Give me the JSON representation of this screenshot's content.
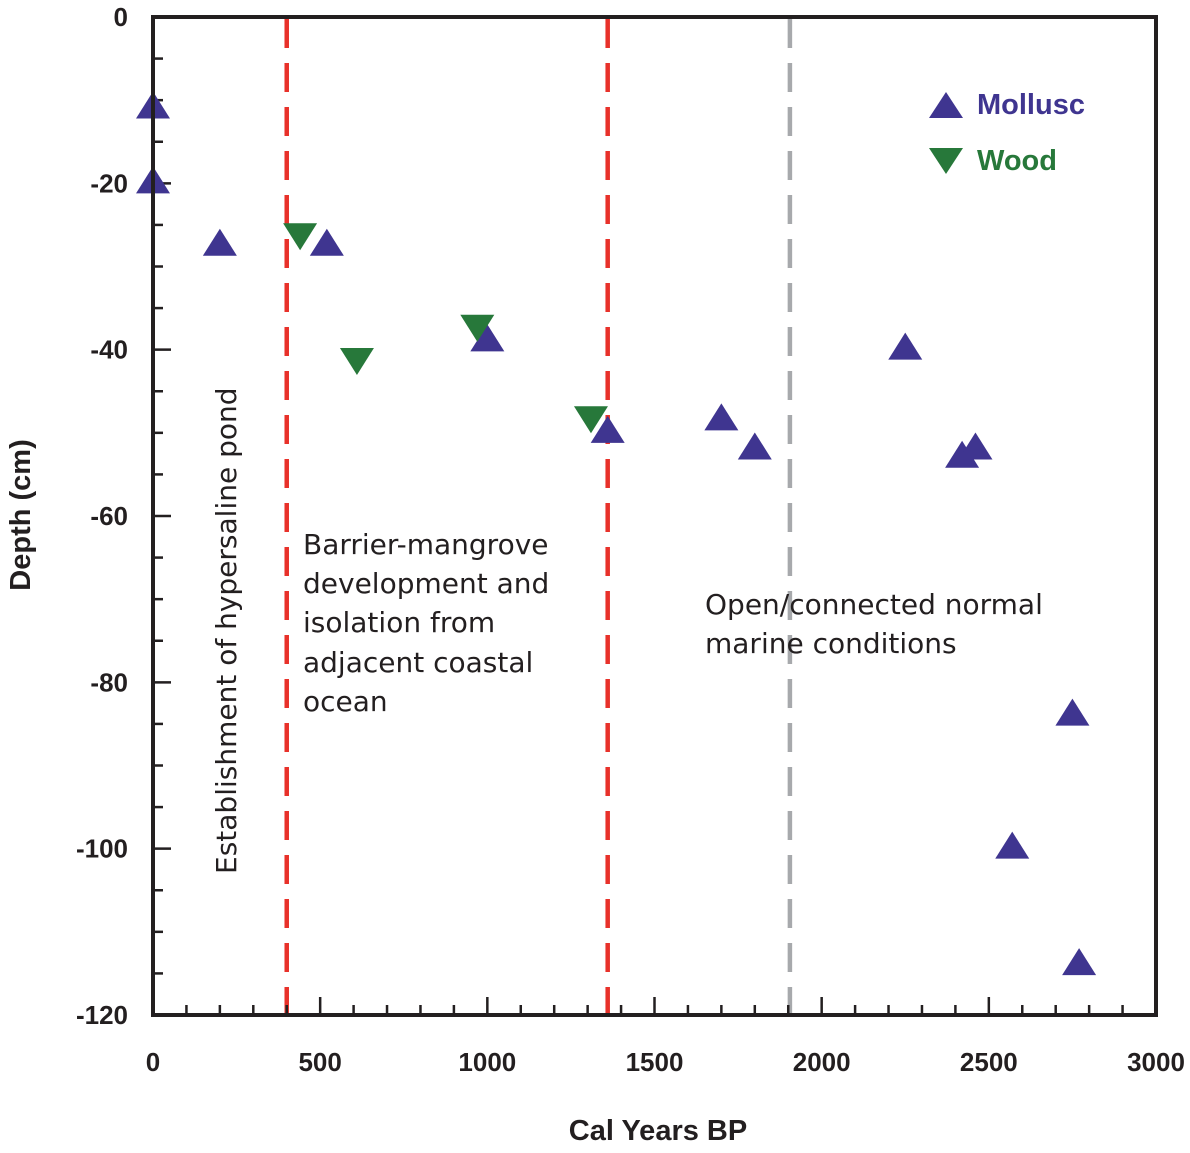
{
  "chart_data": {
    "type": "scatter",
    "xlabel": "Cal Years BP",
    "ylabel": "Depth (cm)",
    "xlim": [
      0,
      3000
    ],
    "ylim": [
      -120,
      0
    ],
    "xticks": [
      0,
      500,
      1000,
      1500,
      2000,
      2500,
      3000
    ],
    "yticks": [
      0,
      -20,
      -40,
      -60,
      -80,
      -100,
      -120
    ],
    "x_minor_step": 100,
    "y_minor_step": 5,
    "series": [
      {
        "name": "Mollusc",
        "marker": "triangle-up",
        "color": "#3f3590",
        "points": [
          [
            0,
            -11
          ],
          [
            0,
            -20
          ],
          [
            200,
            -27.5
          ],
          [
            520,
            -27.5
          ],
          [
            1000,
            -39
          ],
          [
            1360,
            -50
          ],
          [
            1700,
            -48.5
          ],
          [
            1800,
            -52
          ],
          [
            2250,
            -40
          ],
          [
            2420,
            -53
          ],
          [
            2460,
            -52
          ],
          [
            2570,
            -100
          ],
          [
            2750,
            -84
          ],
          [
            2770,
            -114
          ]
        ]
      },
      {
        "name": "Wood",
        "marker": "triangle-down",
        "color": "#27783a",
        "points": [
          [
            440,
            -26
          ],
          [
            610,
            -41
          ],
          [
            970,
            -37
          ],
          [
            1310,
            -48
          ]
        ]
      }
    ],
    "vlines": [
      {
        "x": 400,
        "color": "#e8312a",
        "style": "dashed"
      },
      {
        "x": 1360,
        "color": "#e8312a",
        "style": "dashed"
      },
      {
        "x": 1905,
        "color": "#a7a9ac",
        "style": "dashed"
      }
    ],
    "annotations": {
      "rotated": "Establishment of hypersaline pond",
      "barrier": [
        "Barrier-mangrove",
        "development and",
        "isolation from",
        "adjacent coastal",
        "ocean"
      ],
      "open": [
        "Open/connected normal",
        "marine conditions"
      ]
    },
    "legend_position": "top-right"
  }
}
